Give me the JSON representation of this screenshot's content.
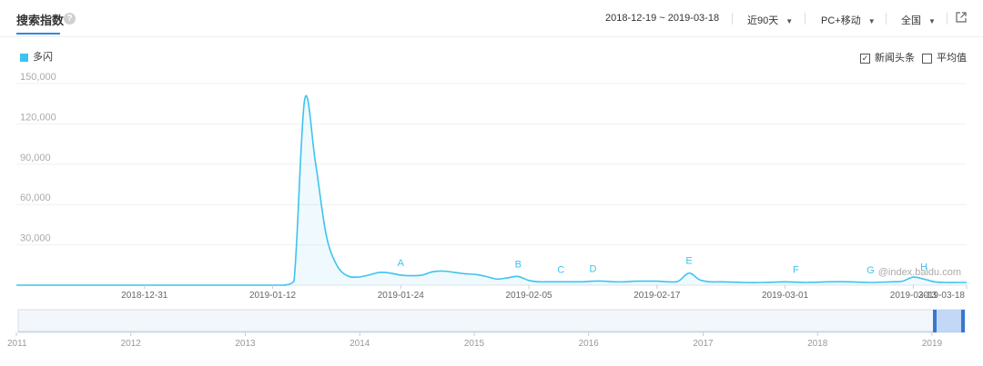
{
  "header": {
    "title": "搜索指数",
    "date_range": "2018-12-19 ~ 2019-03-18",
    "period": "近90天",
    "device": "PC+移动",
    "region": "全国"
  },
  "legend": {
    "series_label": "多闪"
  },
  "options": {
    "news_label": "新闻头条",
    "news_checked": true,
    "average_label": "平均值",
    "average_checked": false
  },
  "watermark": "@index.baidu.com",
  "chart_data": {
    "type": "area",
    "y_ticks": [
      "150,000",
      "120,000",
      "90,000",
      "60,000",
      "30,000"
    ],
    "x_ticks": [
      "2018-12-31",
      "2019-01-12",
      "2019-01-24",
      "2019-02-05",
      "2019-02-17",
      "2019-03-01",
      "2019-03-13",
      "2019-03-18"
    ],
    "ylim": [
      0,
      150000
    ],
    "grid": true,
    "series": [
      {
        "name": "多闪",
        "color": "#3ec3ee",
        "x": [
          "2018-12-19",
          "2018-12-31",
          "2019-01-12",
          "2019-01-13",
          "2019-01-14",
          "2019-01-15",
          "2019-01-16",
          "2019-01-17",
          "2019-01-18",
          "2019-01-19",
          "2019-01-20",
          "2019-01-21",
          "2019-01-22",
          "2019-01-23",
          "2019-01-24",
          "2019-01-25",
          "2019-01-26",
          "2019-01-27",
          "2019-01-28",
          "2019-01-29",
          "2019-01-30",
          "2019-01-31",
          "2019-02-01",
          "2019-02-02",
          "2019-02-03",
          "2019-02-04",
          "2019-02-05",
          "2019-02-06",
          "2019-02-07",
          "2019-02-08",
          "2019-02-09",
          "2019-02-10",
          "2019-02-11",
          "2019-02-12",
          "2019-02-13",
          "2019-02-14",
          "2019-02-15",
          "2019-02-16",
          "2019-02-17",
          "2019-02-18",
          "2019-02-19",
          "2019-02-20",
          "2019-02-21",
          "2019-02-22",
          "2019-02-23",
          "2019-02-25",
          "2019-02-27",
          "2019-03-01",
          "2019-03-03",
          "2019-03-05",
          "2019-03-07",
          "2019-03-09",
          "2019-03-11",
          "2019-03-12",
          "2019-03-13",
          "2019-03-14",
          "2019-03-15",
          "2019-03-16",
          "2019-03-17",
          "2019-03-18"
        ],
        "values": [
          0,
          0,
          0,
          0,
          3000,
          138000,
          92000,
          38000,
          15000,
          7000,
          6000,
          7500,
          9500,
          9000,
          7500,
          7000,
          7500,
          10000,
          10500,
          9500,
          8500,
          8000,
          6500,
          4500,
          5500,
          6500,
          3500,
          2500,
          2500,
          2500,
          2500,
          2500,
          3000,
          3000,
          2500,
          2500,
          3000,
          3000,
          3000,
          2500,
          3000,
          9000,
          4000,
          2500,
          2500,
          2000,
          2000,
          2500,
          2000,
          2500,
          2500,
          2000,
          2500,
          3000,
          6000,
          4500,
          2500,
          2000,
          2000,
          2000
        ]
      }
    ],
    "annotations": [
      {
        "label": "A",
        "x": "2019-01-24"
      },
      {
        "label": "B",
        "x": "2019-02-04"
      },
      {
        "label": "C",
        "x": "2019-02-08"
      },
      {
        "label": "D",
        "x": "2019-02-11"
      },
      {
        "label": "E",
        "x": "2019-02-20"
      },
      {
        "label": "F",
        "x": "2019-03-02"
      },
      {
        "label": "G",
        "x": "2019-03-09"
      },
      {
        "label": "H",
        "x": "2019-03-14"
      }
    ],
    "overview_ticks": [
      "2011",
      "2012",
      "2013",
      "2014",
      "2015",
      "2016",
      "2017",
      "2018",
      "2019"
    ]
  }
}
